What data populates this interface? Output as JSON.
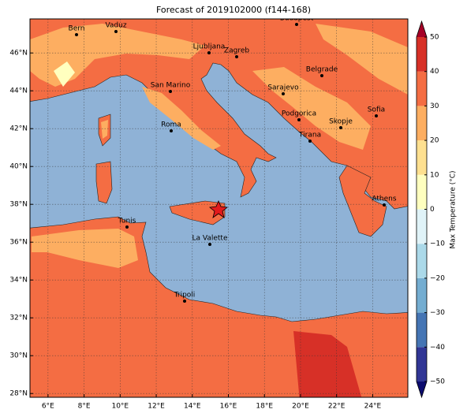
{
  "title": "Forecast of 2019102000 (f144-168)",
  "map": {
    "xlim": [
      5,
      25.95
    ],
    "ylim": [
      27.8,
      47.8
    ],
    "xticks": [
      {
        "value": 6,
        "label": "6°E"
      },
      {
        "value": 8,
        "label": "8°E"
      },
      {
        "value": 10,
        "label": "10°E"
      },
      {
        "value": 12,
        "label": "12°E"
      },
      {
        "value": 14,
        "label": "14°E"
      },
      {
        "value": 16,
        "label": "16°E"
      },
      {
        "value": 18,
        "label": "18°E"
      },
      {
        "value": 20,
        "label": "20°E"
      },
      {
        "value": 22,
        "label": "22°E"
      },
      {
        "value": 24,
        "label": "24°E"
      }
    ],
    "yticks": [
      {
        "value": 28,
        "label": "28°N"
      },
      {
        "value": 30,
        "label": "30°N"
      },
      {
        "value": 32,
        "label": "32°N"
      },
      {
        "value": 34,
        "label": "34°N"
      },
      {
        "value": 36,
        "label": "36°N"
      },
      {
        "value": 38,
        "label": "38°N"
      },
      {
        "value": 40,
        "label": "40°N"
      },
      {
        "value": 42,
        "label": "42°N"
      },
      {
        "value": 44,
        "label": "44°N"
      },
      {
        "value": 46,
        "label": "46°N"
      }
    ],
    "grid": true,
    "cities": [
      "Bern",
      "Vaduz",
      "Budapest",
      "Ljubljana",
      "Zagreb",
      "Belgrade",
      "San Marino",
      "Sarajevo",
      "Sofia",
      "Roma",
      "Podgorica",
      "Skopje",
      "Tirana",
      "Athens",
      "Tunis",
      "La Valette",
      "Tripoli"
    ]
  },
  "colorbar": {
    "label": "Max Temperature (°C)",
    "lim": [
      -50,
      50
    ],
    "ticks": [
      {
        "value": -50,
        "label": "−50"
      },
      {
        "value": -40,
        "label": "−40"
      },
      {
        "value": -30,
        "label": "−30"
      },
      {
        "value": -20,
        "label": "−20"
      },
      {
        "value": -10,
        "label": "−10"
      },
      0,
      10,
      20,
      30,
      40,
      50
    ],
    "colors": [
      "#313695",
      "#4575b4",
      "#74add1",
      "#abd9e9",
      "#e0f3f8",
      "#ffffbf",
      "#fee090",
      "#fdae61",
      "#f46d43",
      "#d73027"
    ],
    "under": "#0b0b6e",
    "over": "#a50026"
  }
}
